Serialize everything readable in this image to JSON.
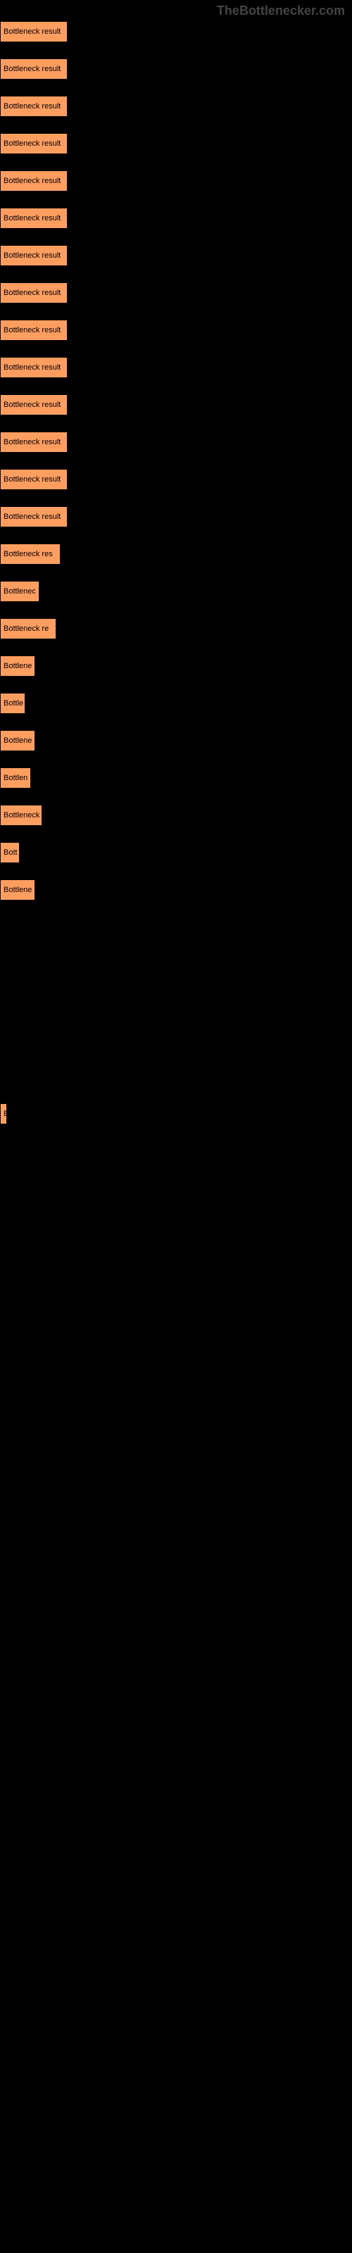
{
  "watermark": "TheBottlenecker.com",
  "chart": {
    "type": "bar",
    "bar_color": "#ff9e5e",
    "bar_border": "#000000",
    "background_color": "#000000",
    "text_color": "#000000",
    "font_size": 11,
    "bars": [
      {
        "label": "Bottleneck result",
        "width": 96
      },
      {
        "label": "Bottleneck result",
        "width": 96
      },
      {
        "label": "Bottleneck result",
        "width": 96
      },
      {
        "label": "Bottleneck result",
        "width": 96
      },
      {
        "label": "Bottleneck result",
        "width": 96
      },
      {
        "label": "Bottleneck result",
        "width": 96
      },
      {
        "label": "Bottleneck result",
        "width": 96
      },
      {
        "label": "Bottleneck result",
        "width": 96
      },
      {
        "label": "Bottleneck result",
        "width": 96
      },
      {
        "label": "Bottleneck result",
        "width": 96
      },
      {
        "label": "Bottleneck result",
        "width": 96
      },
      {
        "label": "Bottleneck result",
        "width": 96
      },
      {
        "label": "Bottleneck result",
        "width": 96
      },
      {
        "label": "Bottleneck result",
        "width": 96
      },
      {
        "label": "Bottleneck res",
        "width": 86
      },
      {
        "label": "Bottlenec",
        "width": 56
      },
      {
        "label": "Bottleneck re",
        "width": 80
      },
      {
        "label": "Bottlene",
        "width": 50
      },
      {
        "label": "Bottle",
        "width": 36
      },
      {
        "label": "Bottlene",
        "width": 50
      },
      {
        "label": "Bottlen",
        "width": 44
      },
      {
        "label": "Bottleneck",
        "width": 60
      },
      {
        "label": "Bott",
        "width": 28
      },
      {
        "label": "Bottlene",
        "width": 50
      },
      {
        "label": "",
        "width": 0
      },
      {
        "label": "",
        "width": 0
      },
      {
        "label": "",
        "width": 0
      },
      {
        "label": "",
        "width": 0
      },
      {
        "label": "",
        "width": 0
      },
      {
        "label": "B",
        "width": 10
      },
      {
        "label": "",
        "width": 0
      },
      {
        "label": "",
        "width": 0
      },
      {
        "label": "",
        "width": 0
      },
      {
        "label": "",
        "width": 0
      },
      {
        "label": "",
        "width": 0
      },
      {
        "label": "",
        "width": 0
      },
      {
        "label": "",
        "width": 0
      },
      {
        "label": "",
        "width": 0
      },
      {
        "label": "",
        "width": 0
      },
      {
        "label": "",
        "width": 0
      },
      {
        "label": "",
        "width": 0
      },
      {
        "label": "",
        "width": 0
      },
      {
        "label": "",
        "width": 0
      },
      {
        "label": "",
        "width": 0
      },
      {
        "label": "",
        "width": 0
      },
      {
        "label": "",
        "width": 0
      },
      {
        "label": "",
        "width": 0
      },
      {
        "label": "",
        "width": 0
      },
      {
        "label": "",
        "width": 0
      },
      {
        "label": "",
        "width": 0
      },
      {
        "label": "",
        "width": 0
      },
      {
        "label": "",
        "width": 0
      },
      {
        "label": "",
        "width": 0
      },
      {
        "label": "",
        "width": 0
      },
      {
        "label": "",
        "width": 0
      },
      {
        "label": "",
        "width": 0
      },
      {
        "label": "",
        "width": 0
      },
      {
        "label": "",
        "width": 0
      },
      {
        "label": "",
        "width": 0
      }
    ]
  }
}
